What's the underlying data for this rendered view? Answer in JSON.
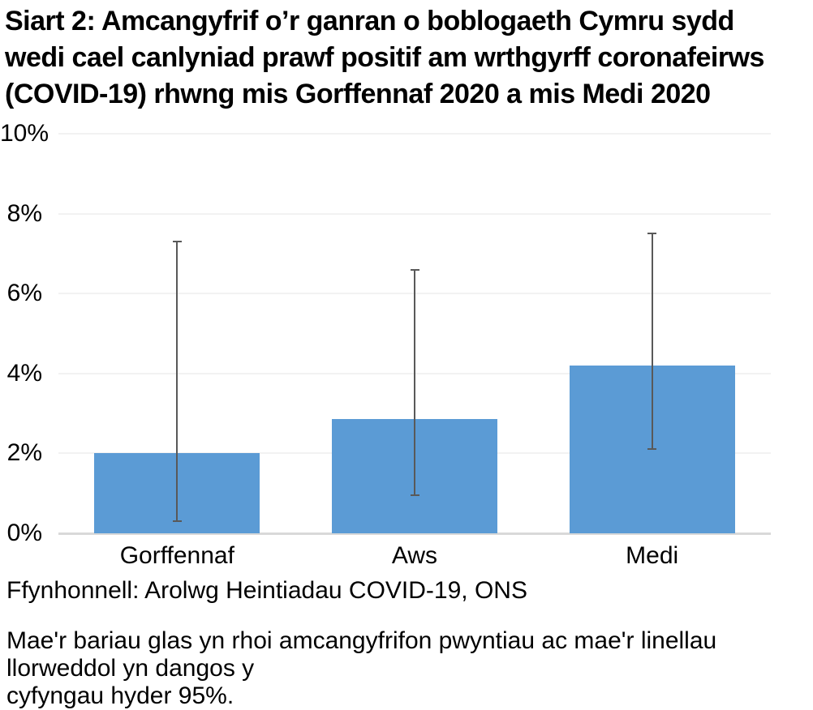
{
  "title": {
    "lines": [
      "Siart 2: Amcangyfrif o’r ganran o boblogaeth Cymru sydd",
      "wedi cael canlyniad prawf positif am wrthgyrff coronafeirws",
      "(COVID-19) rhwng mis Gorffennaf 2020 a mis Medi 2020"
    ]
  },
  "chart_data": {
    "type": "bar",
    "categories": [
      "Gorffennaf",
      "Aws",
      "Medi"
    ],
    "values": [
      2.0,
      2.85,
      4.2
    ],
    "error_low": [
      0.3,
      0.95,
      2.1
    ],
    "error_high": [
      7.3,
      6.6,
      7.5
    ],
    "ylim": [
      0,
      10
    ],
    "yticks": [
      0,
      2,
      4,
      6,
      8,
      10
    ],
    "ytick_labels": [
      "0%",
      "2%",
      "4%",
      "6%",
      "8%",
      "10%"
    ],
    "grid": "horizontal",
    "legend": "none",
    "bar_color": "#5B9BD5",
    "error_bar_color": "#595959",
    "gridline_color": "#f2f2f2",
    "baseline_color": "#d9d9d9"
  },
  "source_note": "Ffynhonnell: Arolwg Heintiadau COVID-19, ONS",
  "footnote": {
    "lines": [
      "Mae'r bariau glas yn rhoi amcangyfrifon pwyntiau ac mae'r linellau llorweddol yn dangos y",
      "cyfyngau hyder 95%."
    ]
  }
}
